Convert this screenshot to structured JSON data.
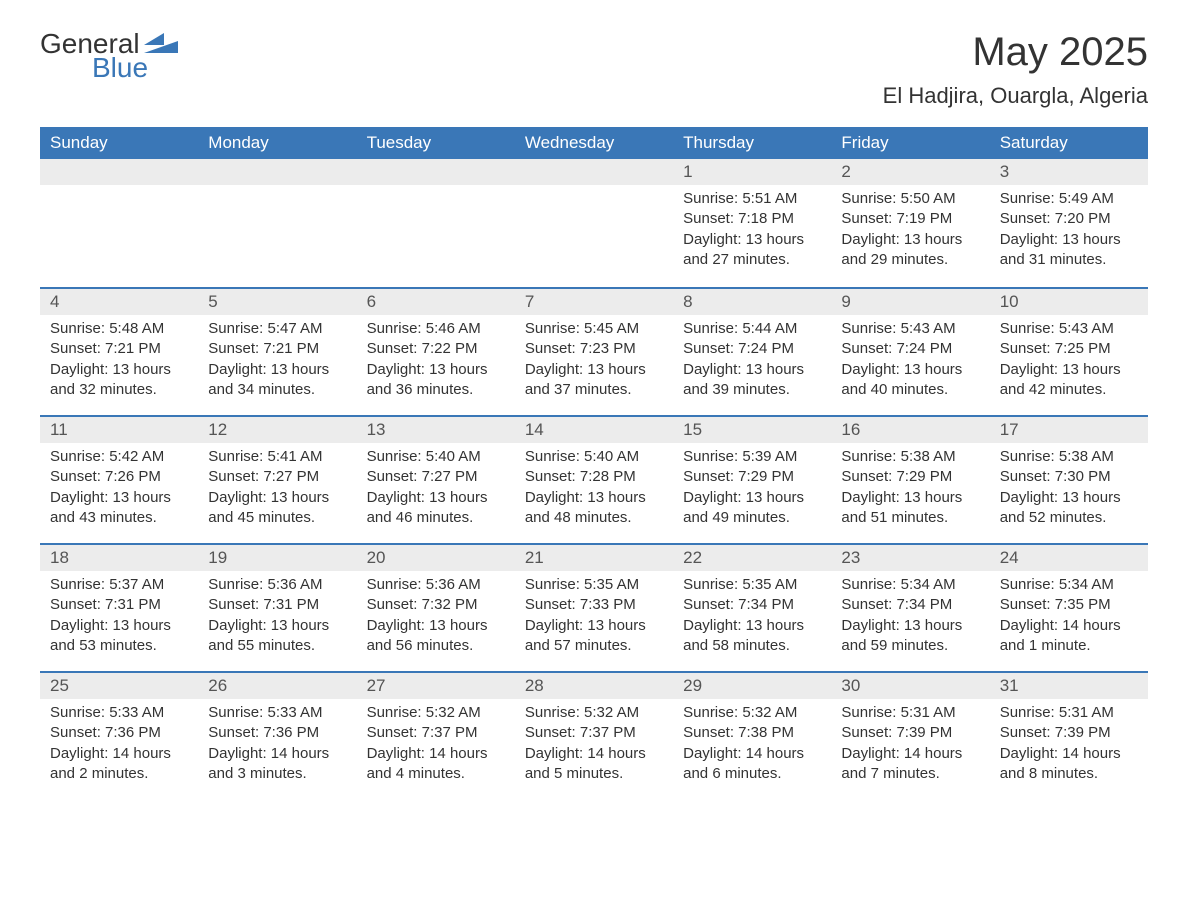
{
  "logo": {
    "general": "General",
    "blue": "Blue"
  },
  "title": "May 2025",
  "location": "El Hadjira, Ouargla, Algeria",
  "colors": {
    "header_bg": "#3a77b7",
    "header_fg": "#ffffff",
    "daynum_bg": "#ececec",
    "border": "#3a77b7",
    "text": "#333333",
    "bg": "#ffffff"
  },
  "weekdays": [
    "Sunday",
    "Monday",
    "Tuesday",
    "Wednesday",
    "Thursday",
    "Friday",
    "Saturday"
  ],
  "weeks": [
    [
      null,
      null,
      null,
      null,
      {
        "n": "1",
        "sunrise": "5:51 AM",
        "sunset": "7:18 PM",
        "daylight": "13 hours and 27 minutes."
      },
      {
        "n": "2",
        "sunrise": "5:50 AM",
        "sunset": "7:19 PM",
        "daylight": "13 hours and 29 minutes."
      },
      {
        "n": "3",
        "sunrise": "5:49 AM",
        "sunset": "7:20 PM",
        "daylight": "13 hours and 31 minutes."
      }
    ],
    [
      {
        "n": "4",
        "sunrise": "5:48 AM",
        "sunset": "7:21 PM",
        "daylight": "13 hours and 32 minutes."
      },
      {
        "n": "5",
        "sunrise": "5:47 AM",
        "sunset": "7:21 PM",
        "daylight": "13 hours and 34 minutes."
      },
      {
        "n": "6",
        "sunrise": "5:46 AM",
        "sunset": "7:22 PM",
        "daylight": "13 hours and 36 minutes."
      },
      {
        "n": "7",
        "sunrise": "5:45 AM",
        "sunset": "7:23 PM",
        "daylight": "13 hours and 37 minutes."
      },
      {
        "n": "8",
        "sunrise": "5:44 AM",
        "sunset": "7:24 PM",
        "daylight": "13 hours and 39 minutes."
      },
      {
        "n": "9",
        "sunrise": "5:43 AM",
        "sunset": "7:24 PM",
        "daylight": "13 hours and 40 minutes."
      },
      {
        "n": "10",
        "sunrise": "5:43 AM",
        "sunset": "7:25 PM",
        "daylight": "13 hours and 42 minutes."
      }
    ],
    [
      {
        "n": "11",
        "sunrise": "5:42 AM",
        "sunset": "7:26 PM",
        "daylight": "13 hours and 43 minutes."
      },
      {
        "n": "12",
        "sunrise": "5:41 AM",
        "sunset": "7:27 PM",
        "daylight": "13 hours and 45 minutes."
      },
      {
        "n": "13",
        "sunrise": "5:40 AM",
        "sunset": "7:27 PM",
        "daylight": "13 hours and 46 minutes."
      },
      {
        "n": "14",
        "sunrise": "5:40 AM",
        "sunset": "7:28 PM",
        "daylight": "13 hours and 48 minutes."
      },
      {
        "n": "15",
        "sunrise": "5:39 AM",
        "sunset": "7:29 PM",
        "daylight": "13 hours and 49 minutes."
      },
      {
        "n": "16",
        "sunrise": "5:38 AM",
        "sunset": "7:29 PM",
        "daylight": "13 hours and 51 minutes."
      },
      {
        "n": "17",
        "sunrise": "5:38 AM",
        "sunset": "7:30 PM",
        "daylight": "13 hours and 52 minutes."
      }
    ],
    [
      {
        "n": "18",
        "sunrise": "5:37 AM",
        "sunset": "7:31 PM",
        "daylight": "13 hours and 53 minutes."
      },
      {
        "n": "19",
        "sunrise": "5:36 AM",
        "sunset": "7:31 PM",
        "daylight": "13 hours and 55 minutes."
      },
      {
        "n": "20",
        "sunrise": "5:36 AM",
        "sunset": "7:32 PM",
        "daylight": "13 hours and 56 minutes."
      },
      {
        "n": "21",
        "sunrise": "5:35 AM",
        "sunset": "7:33 PM",
        "daylight": "13 hours and 57 minutes."
      },
      {
        "n": "22",
        "sunrise": "5:35 AM",
        "sunset": "7:34 PM",
        "daylight": "13 hours and 58 minutes."
      },
      {
        "n": "23",
        "sunrise": "5:34 AM",
        "sunset": "7:34 PM",
        "daylight": "13 hours and 59 minutes."
      },
      {
        "n": "24",
        "sunrise": "5:34 AM",
        "sunset": "7:35 PM",
        "daylight": "14 hours and 1 minute."
      }
    ],
    [
      {
        "n": "25",
        "sunrise": "5:33 AM",
        "sunset": "7:36 PM",
        "daylight": "14 hours and 2 minutes."
      },
      {
        "n": "26",
        "sunrise": "5:33 AM",
        "sunset": "7:36 PM",
        "daylight": "14 hours and 3 minutes."
      },
      {
        "n": "27",
        "sunrise": "5:32 AM",
        "sunset": "7:37 PM",
        "daylight": "14 hours and 4 minutes."
      },
      {
        "n": "28",
        "sunrise": "5:32 AM",
        "sunset": "7:37 PM",
        "daylight": "14 hours and 5 minutes."
      },
      {
        "n": "29",
        "sunrise": "5:32 AM",
        "sunset": "7:38 PM",
        "daylight": "14 hours and 6 minutes."
      },
      {
        "n": "30",
        "sunrise": "5:31 AM",
        "sunset": "7:39 PM",
        "daylight": "14 hours and 7 minutes."
      },
      {
        "n": "31",
        "sunrise": "5:31 AM",
        "sunset": "7:39 PM",
        "daylight": "14 hours and 8 minutes."
      }
    ]
  ],
  "labels": {
    "sunrise": "Sunrise: ",
    "sunset": "Sunset: ",
    "daylight": "Daylight: "
  }
}
